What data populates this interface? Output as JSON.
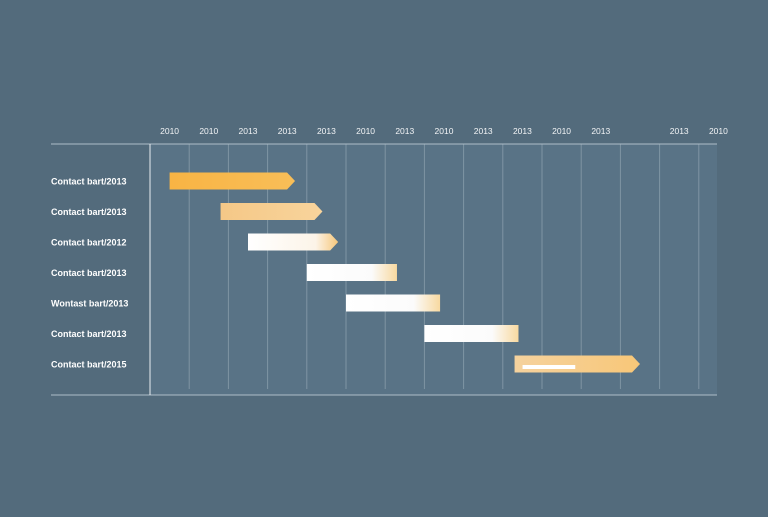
{
  "chart_data": {
    "type": "gantt",
    "title": "",
    "xlabel": "",
    "ylabel": "",
    "grid": true,
    "legend": "none",
    "x_ticks": [
      "2010",
      "2010",
      "2013",
      "2013",
      "2013",
      "2010",
      "2013",
      "2010",
      "2013",
      "2013",
      "2010",
      "2013",
      "",
      "2013",
      "2010"
    ],
    "tasks": [
      {
        "label": "Contact bart/2013",
        "start": 0.5,
        "end": 3.7,
        "style": "solid-arrow"
      },
      {
        "label": "Contact bart/2013",
        "start": 1.8,
        "end": 4.4,
        "style": "light-arrow"
      },
      {
        "label": "Contact bart/2012",
        "start": 2.5,
        "end": 4.8,
        "style": "white-arrow"
      },
      {
        "label": "Contact bart/2013",
        "start": 4.0,
        "end": 6.3,
        "style": "white-gradient"
      },
      {
        "label": "Wontast bart/2013",
        "start": 5.0,
        "end": 7.4,
        "style": "white-gradient"
      },
      {
        "label": "Contact bart/2013",
        "start": 7.0,
        "end": 9.4,
        "style": "white-gradient"
      },
      {
        "label": "Contact bart/2015",
        "start": 9.3,
        "end": 12.5,
        "style": "mixed-arrow"
      }
    ],
    "colors": {
      "background": "#536b7c",
      "plot_background": "#597386",
      "grid": "#7f95a4",
      "axis": "#aebdc8",
      "label_text": "#ffffff",
      "tick_text": "#f2f4f6",
      "bar_orange": "#f7b94c",
      "bar_light_orange": "#f6cd8f",
      "bar_white": "#fbfbfb"
    }
  }
}
